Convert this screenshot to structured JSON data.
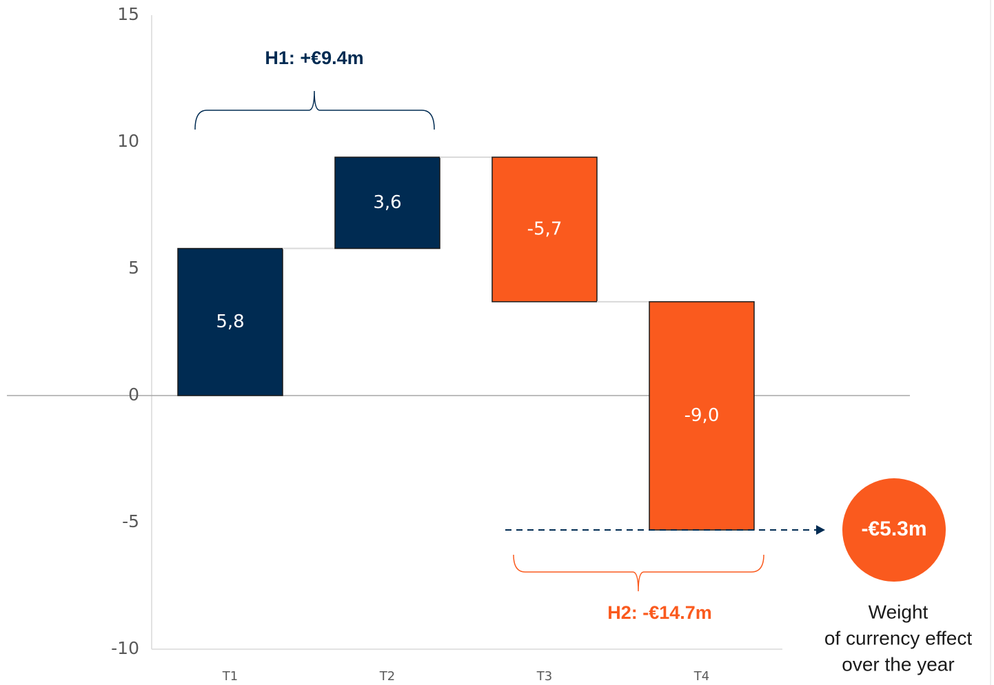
{
  "chart_data": {
    "type": "waterfall",
    "categories": [
      "T1",
      "T2",
      "T3",
      "T4"
    ],
    "values": [
      5.8,
      3.6,
      -5.7,
      -9.0
    ],
    "value_labels": [
      "5,8",
      "3,6",
      "-5,7",
      "-9,0"
    ],
    "positive_color": "#002b52",
    "negative_color": "#fa5a1e",
    "ylim": [
      -10,
      15
    ],
    "yticks": [
      -10,
      -5,
      0,
      5,
      10,
      15
    ],
    "annotations": {
      "h1": "H1: +€9.4m",
      "h2": "H2: -€14.7m",
      "total": "-€5.3m",
      "note": [
        "Weight",
        "of currency effect",
        "over the year"
      ]
    }
  }
}
